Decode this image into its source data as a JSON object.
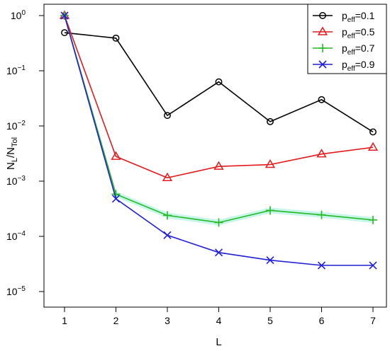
{
  "chart_data": {
    "type": "line",
    "xlabel": "L",
    "ylabel": {
      "main": "N",
      "sub1": "L",
      "mid": "/N",
      "sub2": "Tol"
    },
    "x": [
      1,
      2,
      3,
      4,
      5,
      6,
      7
    ],
    "xlim": [
      1,
      7
    ],
    "y_scale": "log",
    "ylim": [
      1e-05,
      1
    ],
    "y_ticks": [
      {
        "value": 1,
        "base": "10",
        "exp": "0"
      },
      {
        "value": 0.1,
        "base": "10",
        "exp": "−1"
      },
      {
        "value": 0.01,
        "base": "10",
        "exp": "−2"
      },
      {
        "value": 0.001,
        "base": "10",
        "exp": "−3"
      },
      {
        "value": 0.0001,
        "base": "10",
        "exp": "−4"
      },
      {
        "value": 1e-05,
        "base": "10",
        "exp": "−5"
      }
    ],
    "grid": false,
    "legend_position": "top-right",
    "series": [
      {
        "name": {
          "main": "p",
          "sub": "eff",
          "rest": "=0.1"
        },
        "color": "#000000",
        "marker": "circle",
        "values": [
          0.49,
          0.39,
          0.0155,
          0.063,
          0.012,
          0.03,
          0.0078
        ]
      },
      {
        "name": {
          "main": "p",
          "sub": "eff",
          "rest": "=0.5"
        },
        "color": "#e41a1c",
        "marker": "triangle",
        "values": [
          1.0,
          0.0028,
          0.00115,
          0.00185,
          0.002,
          0.0031,
          0.0041
        ]
      },
      {
        "name": {
          "main": "p",
          "sub": "eff",
          "rest": "=0.7"
        },
        "color": "#22bb22",
        "marker": "plus",
        "band_color": "#c8f5ea",
        "values": [
          1.0,
          0.00058,
          0.00024,
          0.000178,
          0.000295,
          0.000245,
          0.000198
        ]
      },
      {
        "name": {
          "main": "p",
          "sub": "eff",
          "rest": "=0.9"
        },
        "color": "#1f1fd6",
        "marker": "x",
        "values": [
          1.0,
          0.00048,
          0.000105,
          5.1e-05,
          3.7e-05,
          2.98e-05,
          2.98e-05
        ]
      }
    ]
  }
}
